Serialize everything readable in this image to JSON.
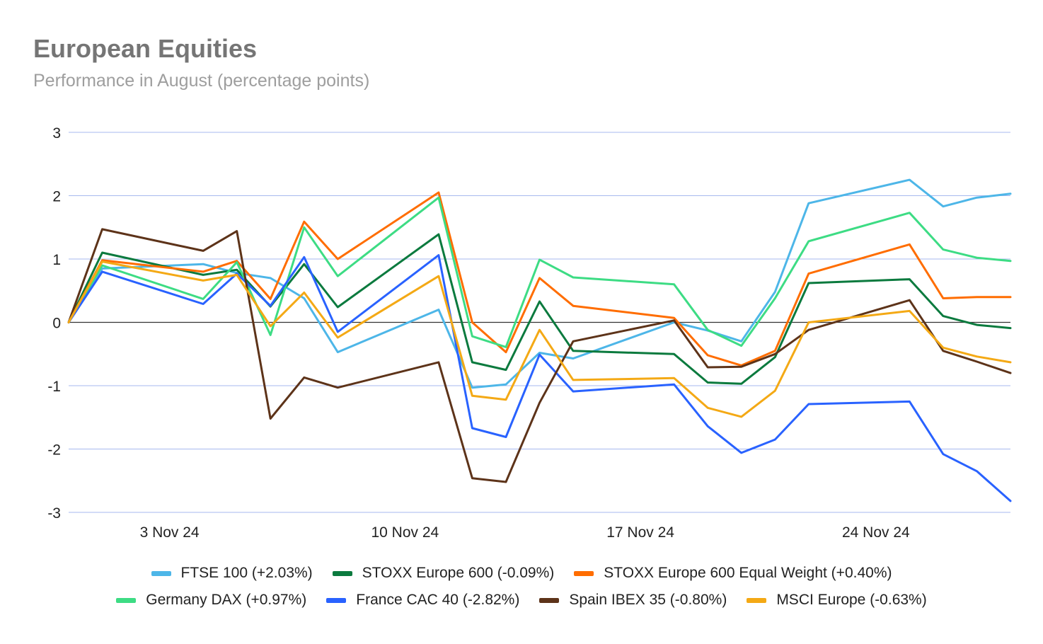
{
  "chart_data": {
    "type": "line",
    "title": "European Equities",
    "subtitle": "Performance in August (percentage points)",
    "xlabel": "",
    "ylabel": "",
    "ylim": [
      -3,
      3
    ],
    "yticks": [
      3,
      2,
      1,
      0,
      -1,
      -2,
      -3
    ],
    "xtick_labels": [
      {
        "date": "2024-11-03",
        "label": "3 Nov 24"
      },
      {
        "date": "2024-11-10",
        "label": "10 Nov 24"
      },
      {
        "date": "2024-11-17",
        "label": "17 Nov 24"
      },
      {
        "date": "2024-11-24",
        "label": "24 Nov 24"
      }
    ],
    "x": [
      "2024-10-31",
      "2024-11-01",
      "2024-11-04",
      "2024-11-05",
      "2024-11-06",
      "2024-11-07",
      "2024-11-08",
      "2024-11-11",
      "2024-11-12",
      "2024-11-13",
      "2024-11-14",
      "2024-11-15",
      "2024-11-18",
      "2024-11-19",
      "2024-11-20",
      "2024-11-21",
      "2024-11-22",
      "2024-11-25",
      "2024-11-26",
      "2024-11-27",
      "2024-11-28"
    ],
    "grid": true,
    "legend_position": "bottom",
    "series": [
      {
        "name": "FTSE 100 (+2.03%)",
        "color": "#4db6e8",
        "values": [
          0,
          0.85,
          0.92,
          0.78,
          0.7,
          0.38,
          -0.47,
          0.2,
          -1.03,
          -0.98,
          -0.48,
          -0.57,
          0,
          -0.13,
          -0.3,
          0.48,
          1.88,
          2.25,
          1.83,
          1.97,
          2.03
        ]
      },
      {
        "name": "STOXX Europe 600 (-0.09%)",
        "color": "#0b7a3e",
        "values": [
          0,
          1.1,
          0.75,
          0.83,
          0.25,
          0.92,
          0.24,
          1.39,
          -0.63,
          -0.75,
          0.33,
          -0.45,
          -0.5,
          -0.95,
          -0.97,
          -0.55,
          0.62,
          0.68,
          0.1,
          -0.04,
          -0.09
        ]
      },
      {
        "name": "STOXX Europe 600 Equal Weight (+0.40%)",
        "color": "#ff6d00",
        "values": [
          0,
          0.98,
          0.8,
          0.97,
          0.37,
          1.59,
          1.0,
          2.05,
          0,
          -0.47,
          0.7,
          0.26,
          0.07,
          -0.52,
          -0.68,
          -0.45,
          0.77,
          1.23,
          0.38,
          0.4,
          0.4
        ]
      },
      {
        "name": "Germany DAX (+0.97%)",
        "color": "#3ddc84",
        "values": [
          0,
          0.9,
          0.37,
          0.95,
          -0.2,
          1.5,
          0.73,
          1.97,
          -0.22,
          -0.39,
          0.99,
          0.71,
          0.6,
          -0.12,
          -0.37,
          0.38,
          1.28,
          1.73,
          1.15,
          1.02,
          0.97
        ]
      },
      {
        "name": "France CAC 40 (-2.82%)",
        "color": "#2962ff",
        "values": [
          0,
          0.8,
          0.29,
          0.77,
          0.26,
          1.03,
          -0.15,
          1.06,
          -1.67,
          -1.81,
          -0.51,
          -1.09,
          -0.98,
          -1.64,
          -2.06,
          -1.85,
          -1.29,
          -1.25,
          -2.08,
          -2.35,
          -2.82
        ]
      },
      {
        "name": "Spain IBEX 35 (-0.80%)",
        "color": "#5d3319",
        "values": [
          0,
          1.47,
          1.13,
          1.44,
          -1.52,
          -0.87,
          -1.03,
          -0.63,
          -2.46,
          -2.52,
          -1.27,
          -0.3,
          0.03,
          -0.71,
          -0.7,
          -0.5,
          -0.12,
          0.35,
          -0.45,
          -0.62,
          -0.8
        ]
      },
      {
        "name": "MSCI Europe (-0.63%)",
        "color": "#f4a915",
        "values": [
          0,
          0.96,
          0.66,
          0.75,
          -0.06,
          0.47,
          -0.24,
          0.73,
          -1.16,
          -1.22,
          -0.12,
          -0.91,
          -0.88,
          -1.35,
          -1.49,
          -1.08,
          0,
          0.18,
          -0.4,
          -0.54,
          -0.63
        ]
      }
    ]
  }
}
